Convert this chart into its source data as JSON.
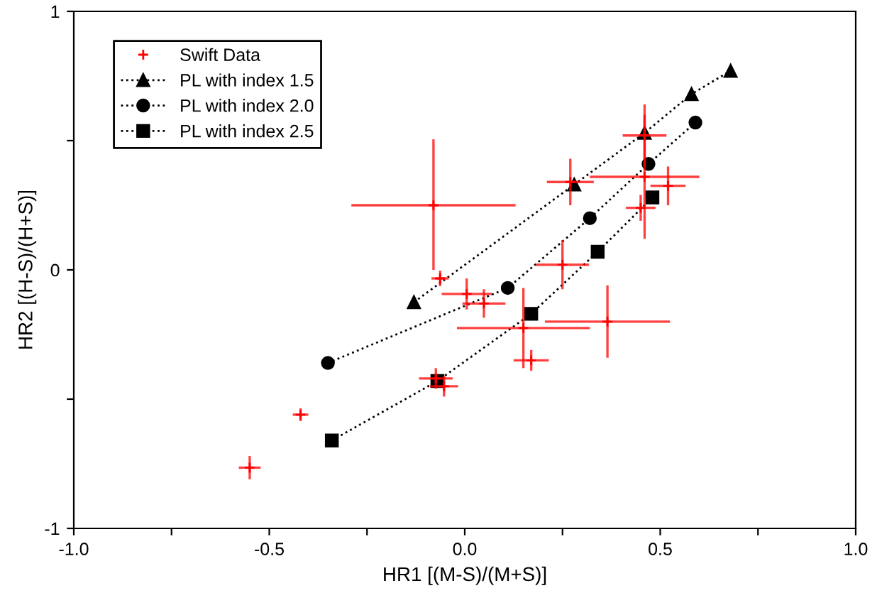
{
  "chart_data": {
    "type": "line",
    "xlabel": "HR1 [(M-S)/(M+S)]",
    "ylabel": "HR2 [(H-S)/(H+S)]",
    "xlim": [
      -1.0,
      1.0
    ],
    "ylim": [
      -1,
      1
    ],
    "xticks": [
      {
        "value": -1.0,
        "label": "-1.0"
      },
      {
        "value": -0.75,
        "label": null
      },
      {
        "value": -0.5,
        "label": "-0.5"
      },
      {
        "value": -0.25,
        "label": null
      },
      {
        "value": 0,
        "label": "0.0"
      },
      {
        "value": 0.25,
        "label": null
      },
      {
        "value": 0.5,
        "label": "0.5"
      },
      {
        "value": 0.75,
        "label": null
      },
      {
        "value": 1.0,
        "label": "1.0"
      }
    ],
    "yticks": [
      -1,
      {
        "value": -0.5,
        "label": null
      },
      0,
      {
        "value": 0.5,
        "label": null
      },
      1
    ],
    "grid": false,
    "legend": "top left",
    "series": [
      {
        "name": "Swift Data",
        "type": "scatter",
        "marker": "cross",
        "color": "#ff0000",
        "x": [
          -0.08,
          -0.063,
          0.005,
          0.049,
          0.15,
          0.365,
          0.17,
          -0.074,
          -0.053,
          -0.42,
          -0.55,
          0.25,
          0.27,
          0.46,
          0.46,
          0.52,
          0.45
        ],
        "values": [
          0.25,
          -0.033,
          -0.093,
          -0.13,
          -0.225,
          -0.2,
          -0.35,
          -0.42,
          -0.45,
          -0.56,
          -0.765,
          0.02,
          0.34,
          0.52,
          0.36,
          0.325,
          0.24
        ],
        "xerrors": [
          0.21,
          0.022,
          0.064,
          0.055,
          0.17,
          0.16,
          0.045,
          0.043,
          0.036,
          0.02,
          0.028,
          0.068,
          0.06,
          0.056,
          0.14,
          0.045,
          0.038
        ],
        "errors": [
          [
            0.25,
            0.255
          ],
          0.03,
          0.06,
          0.055,
          0.155,
          0.14,
          0.04,
          0.04,
          0.04,
          0.025,
          0.045,
          0.095,
          0.09,
          0.12,
          0.24,
          0.075,
          0.05
        ]
      },
      {
        "name": "PL with index 1.5",
        "marker": "triangle",
        "line_style": "dotted",
        "color": "#000000",
        "x": [
          -0.13,
          0.28,
          0.46,
          0.58,
          0.68
        ],
        "values": [
          -0.125,
          0.33,
          0.53,
          0.68,
          0.77
        ]
      },
      {
        "name": "PL with index 2.0",
        "marker": "circle",
        "line_style": "dotted",
        "color": "#000000",
        "x": [
          -0.35,
          0.11,
          0.32,
          0.47,
          0.59
        ],
        "values": [
          -0.36,
          -0.07,
          0.2,
          0.41,
          0.57
        ]
      },
      {
        "name": "PL with index 2.5",
        "marker": "square",
        "line_style": "dotted",
        "color": "#000000",
        "x": [
          -0.34,
          -0.07,
          0.17,
          0.34,
          0.48
        ],
        "values": [
          -0.66,
          -0.43,
          -0.17,
          0.07,
          0.28
        ]
      }
    ]
  }
}
